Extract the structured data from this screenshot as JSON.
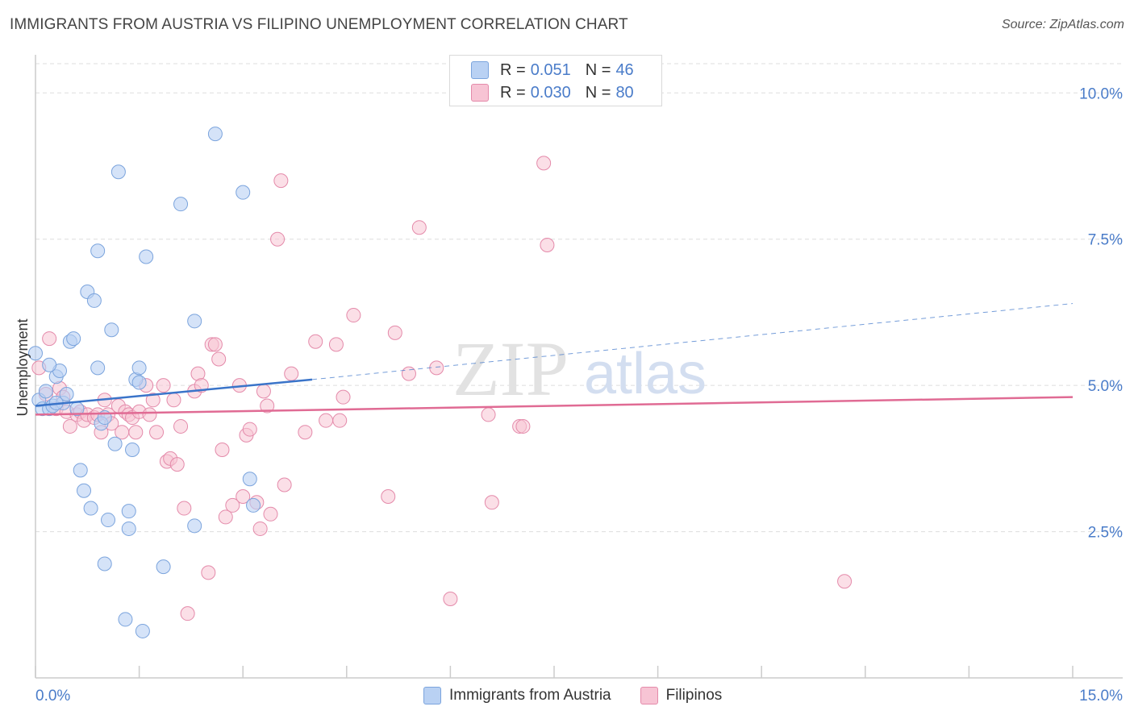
{
  "header": {
    "title": "IMMIGRANTS FROM AUSTRIA VS FILIPINO UNEMPLOYMENT CORRELATION CHART",
    "source": "Source: ZipAtlas.com"
  },
  "watermark": {
    "zip": "ZIP",
    "atlas": "atlas"
  },
  "legend": {
    "rows": [
      {
        "r_label": "R =",
        "r_value": "0.051",
        "n_label": "N =",
        "n_value": "46"
      },
      {
        "r_label": "R =",
        "r_value": "0.030",
        "n_label": "N =",
        "n_value": "80"
      }
    ]
  },
  "bottom_legend": {
    "items": [
      {
        "label": "Immigrants from Austria"
      },
      {
        "label": "Filipinos"
      }
    ]
  },
  "colors": {
    "blue_fill": "#b9d1f3",
    "blue_stroke": "#7ba4dd",
    "blue_line": "#3a74c9",
    "pink_fill": "#f7c4d4",
    "pink_stroke": "#e48aaa",
    "pink_line": "#e06b94",
    "grid": "#dddddd",
    "axis": "#cccccc",
    "tick_text": "#4a7cc9"
  },
  "chart_data": {
    "type": "scatter",
    "title": "IMMIGRANTS FROM AUSTRIA VS FILIPINO UNEMPLOYMENT CORRELATION CHART",
    "xlabel": "",
    "ylabel": "Unemployment",
    "xlim": [
      0,
      15
    ],
    "ylim": [
      0,
      10.5
    ],
    "x_tick_labels": [
      "0.0%",
      "15.0%"
    ],
    "y_ticks": [
      2.5,
      5.0,
      7.5,
      10.0
    ],
    "y_tick_labels": [
      "2.5%",
      "5.0%",
      "7.5%",
      "10.0%"
    ],
    "series": [
      {
        "name": "Immigrants from Austria",
        "R": 0.051,
        "N": 46,
        "trend": {
          "x0": 0.0,
          "y0": 4.65,
          "x_solid_end": 4.0,
          "y_solid_end": 5.1,
          "x1": 15.0,
          "y1": 6.4
        },
        "points": [
          [
            0.0,
            5.55
          ],
          [
            0.05,
            4.75
          ],
          [
            0.1,
            4.6
          ],
          [
            0.15,
            4.9
          ],
          [
            0.2,
            4.6
          ],
          [
            0.25,
            4.65
          ],
          [
            0.3,
            5.15
          ],
          [
            0.35,
            5.25
          ],
          [
            0.4,
            4.7
          ],
          [
            0.45,
            4.85
          ],
          [
            0.5,
            5.75
          ],
          [
            0.55,
            5.8
          ],
          [
            0.6,
            4.6
          ],
          [
            0.65,
            3.55
          ],
          [
            0.7,
            3.2
          ],
          [
            0.75,
            6.6
          ],
          [
            0.8,
            2.9
          ],
          [
            0.85,
            6.45
          ],
          [
            0.9,
            7.3
          ],
          [
            0.9,
            5.3
          ],
          [
            0.95,
            4.35
          ],
          [
            1.0,
            4.45
          ],
          [
            1.05,
            2.7
          ],
          [
            1.0,
            1.95
          ],
          [
            1.1,
            5.95
          ],
          [
            1.15,
            4.0
          ],
          [
            1.2,
            8.65
          ],
          [
            1.3,
            1.0
          ],
          [
            1.35,
            2.55
          ],
          [
            1.35,
            2.85
          ],
          [
            1.4,
            3.9
          ],
          [
            1.45,
            5.1
          ],
          [
            1.5,
            5.05
          ],
          [
            1.5,
            5.3
          ],
          [
            1.55,
            0.8
          ],
          [
            1.6,
            7.2
          ],
          [
            1.85,
            1.9
          ],
          [
            2.1,
            8.1
          ],
          [
            2.3,
            6.1
          ],
          [
            2.3,
            2.6
          ],
          [
            2.6,
            9.3
          ],
          [
            3.0,
            8.3
          ],
          [
            3.1,
            3.4
          ],
          [
            3.15,
            2.95
          ],
          [
            0.2,
            5.35
          ],
          [
            0.3,
            4.7
          ]
        ]
      },
      {
        "name": "Filipinos",
        "R": 0.03,
        "N": 80,
        "trend": {
          "x0": 0.0,
          "y0": 4.5,
          "x1": 15.0,
          "y1": 4.8
        },
        "points": [
          [
            0.05,
            5.3
          ],
          [
            0.15,
            4.85
          ],
          [
            0.2,
            5.8
          ],
          [
            0.3,
            4.6
          ],
          [
            0.35,
            4.95
          ],
          [
            0.4,
            4.8
          ],
          [
            0.45,
            4.55
          ],
          [
            0.5,
            4.3
          ],
          [
            0.6,
            4.5
          ],
          [
            0.65,
            4.55
          ],
          [
            0.7,
            4.4
          ],
          [
            0.75,
            4.5
          ],
          [
            0.85,
            4.45
          ],
          [
            0.9,
            4.5
          ],
          [
            0.95,
            4.2
          ],
          [
            1.0,
            4.75
          ],
          [
            1.05,
            4.5
          ],
          [
            1.1,
            4.35
          ],
          [
            1.2,
            4.65
          ],
          [
            1.25,
            4.2
          ],
          [
            1.3,
            4.55
          ],
          [
            1.35,
            4.5
          ],
          [
            1.4,
            4.45
          ],
          [
            1.45,
            4.2
          ],
          [
            1.5,
            4.55
          ],
          [
            1.6,
            5.0
          ],
          [
            1.65,
            4.5
          ],
          [
            1.7,
            4.75
          ],
          [
            1.75,
            4.2
          ],
          [
            1.85,
            5.0
          ],
          [
            1.9,
            3.7
          ],
          [
            1.95,
            3.75
          ],
          [
            2.0,
            4.75
          ],
          [
            2.05,
            3.65
          ],
          [
            2.1,
            4.3
          ],
          [
            2.15,
            2.9
          ],
          [
            2.2,
            1.1
          ],
          [
            2.3,
            4.9
          ],
          [
            2.35,
            5.2
          ],
          [
            2.4,
            5.0
          ],
          [
            2.5,
            1.8
          ],
          [
            2.55,
            5.7
          ],
          [
            2.6,
            5.7
          ],
          [
            2.65,
            5.45
          ],
          [
            2.7,
            3.9
          ],
          [
            2.75,
            2.75
          ],
          [
            2.85,
            2.95
          ],
          [
            2.95,
            5.0
          ],
          [
            3.0,
            3.1
          ],
          [
            3.05,
            4.15
          ],
          [
            3.1,
            4.25
          ],
          [
            3.2,
            3.0
          ],
          [
            3.25,
            2.55
          ],
          [
            3.3,
            4.9
          ],
          [
            3.35,
            4.65
          ],
          [
            3.4,
            2.8
          ],
          [
            3.5,
            7.5
          ],
          [
            3.55,
            8.5
          ],
          [
            3.6,
            3.3
          ],
          [
            3.7,
            5.2
          ],
          [
            3.9,
            4.2
          ],
          [
            4.05,
            5.75
          ],
          [
            4.2,
            4.4
          ],
          [
            4.35,
            5.7
          ],
          [
            4.4,
            4.4
          ],
          [
            4.45,
            4.8
          ],
          [
            4.6,
            6.2
          ],
          [
            5.1,
            3.1
          ],
          [
            5.2,
            5.9
          ],
          [
            5.4,
            5.2
          ],
          [
            5.55,
            7.7
          ],
          [
            5.8,
            5.3
          ],
          [
            6.0,
            1.35
          ],
          [
            6.55,
            4.5
          ],
          [
            6.6,
            3.0
          ],
          [
            7.0,
            4.3
          ],
          [
            7.05,
            4.3
          ],
          [
            7.35,
            8.8
          ],
          [
            7.4,
            7.4
          ],
          [
            11.7,
            1.65
          ]
        ]
      }
    ]
  }
}
